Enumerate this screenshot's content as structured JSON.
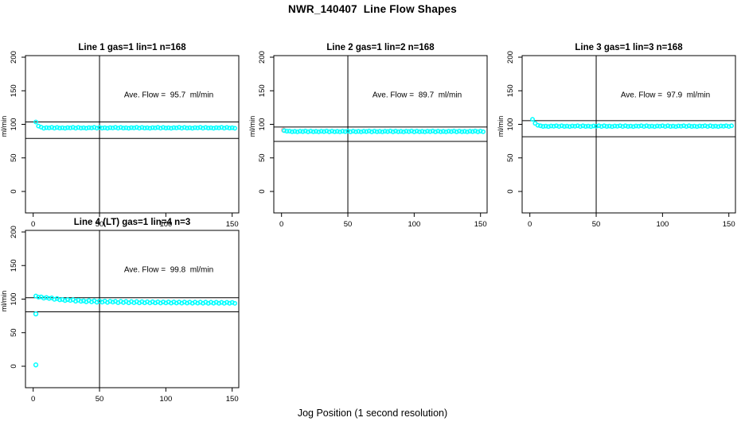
{
  "title": "NWR_140407  Line Flow Shapes",
  "xlabel": "Jog Position (1 second resolution)",
  "colors": {
    "background": "#ffffff",
    "axis": "#000000",
    "series": "#00ffff",
    "flagged": "#ffafaf"
  },
  "chart_data": [
    {
      "type": "scatter",
      "title": "Line 1 gas=1 lin=1 n=168",
      "annotation": "Ave. Flow =  95.7  ml/min",
      "ave_flow": 95.7,
      "ylabel": "ml/min",
      "x_ticks": [
        0,
        50,
        100,
        150
      ],
      "y_ticks": [
        0,
        50,
        100,
        150,
        200
      ],
      "xlim": [
        -6,
        155
      ],
      "ylim": [
        -32,
        202
      ],
      "grid": false,
      "vline_x": 50,
      "hlines": [
        103.5,
        79
      ],
      "x_start": 2,
      "x_step": 2,
      "y_values": [
        103.5,
        97.4,
        95.8,
        94.2,
        95.1,
        94.6,
        95.4,
        94.3,
        95.3,
        94.4,
        94.9,
        94.2,
        95.1,
        94.6,
        95.4,
        94.3,
        95.3,
        94.4,
        94.9,
        94.2,
        95.1,
        94.6,
        95.4,
        94.3,
        95.3,
        94.4,
        94.9,
        94.2,
        95.1,
        94.6,
        95.4,
        94.3,
        95.3,
        94.4,
        94.9,
        94.2,
        95.1,
        94.6,
        95.4,
        94.3,
        95.3,
        94.4,
        94.9,
        94.2,
        95.1,
        94.6,
        95.4,
        94.3,
        95.3,
        94.4,
        94.9,
        94.2,
        95.1,
        94.6,
        95.4,
        94.3,
        95.3,
        94.4,
        94.9,
        94.2,
        95.1,
        94.6,
        95.4,
        94.3,
        95.3,
        94.4,
        94.9,
        94.2,
        95.1,
        94.6,
        95.4,
        94.3,
        95.3,
        94.4,
        94.9,
        94.2
      ],
      "flagged_points": [],
      "extra_points": []
    },
    {
      "type": "scatter",
      "title": "Line 2 gas=1 lin=2 n=168",
      "annotation": "Ave. Flow =  89.7  ml/min",
      "ave_flow": 89.7,
      "ylabel": "ml/min",
      "x_ticks": [
        0,
        50,
        100,
        150
      ],
      "y_ticks": [
        0,
        50,
        100,
        150,
        200
      ],
      "xlim": [
        -6,
        155
      ],
      "ylim": [
        -32,
        202
      ],
      "grid": false,
      "vline_x": 50,
      "hlines": [
        96,
        74.5
      ],
      "x_start": 2,
      "x_step": 2,
      "y_values": [
        90.6,
        89.8,
        89.9,
        89.0,
        89.5,
        88.8,
        89.7,
        89.2,
        90.0,
        88.9,
        89.9,
        89.0,
        89.5,
        88.8,
        89.7,
        89.2,
        90.0,
        88.9,
        89.9,
        89.0,
        89.5,
        88.8,
        89.7,
        89.2,
        90.0,
        88.9,
        89.9,
        89.0,
        89.5,
        88.8,
        89.7,
        89.2,
        90.0,
        88.9,
        89.9,
        89.0,
        89.5,
        88.8,
        89.7,
        89.2,
        90.0,
        88.9,
        89.9,
        89.0,
        89.5,
        88.8,
        89.7,
        89.2,
        90.0,
        88.9,
        89.9,
        89.0,
        89.5,
        88.8,
        89.7,
        89.2,
        90.0,
        88.9,
        89.9,
        89.0,
        89.5,
        88.8,
        89.7,
        89.2,
        90.0,
        88.9,
        89.9,
        89.0,
        89.5,
        88.8,
        89.7,
        89.2,
        90.0,
        88.9,
        89.9,
        89.0
      ],
      "flagged_points": [
        [
          1.5,
          91.5
        ]
      ],
      "extra_points": []
    },
    {
      "type": "scatter",
      "title": "Line 3 gas=1 lin=3 n=168",
      "annotation": "Ave. Flow =  97.9  ml/min",
      "ave_flow": 97.9,
      "ylabel": "ml/min",
      "x_ticks": [
        0,
        50,
        100,
        150
      ],
      "y_ticks": [
        0,
        50,
        100,
        150,
        200
      ],
      "xlim": [
        -6,
        155
      ],
      "ylim": [
        -32,
        202
      ],
      "grid": false,
      "vline_x": 50,
      "hlines": [
        105.5,
        81.5
      ],
      "x_start": 2,
      "x_step": 2,
      "y_values": [
        107.5,
        101.5,
        98.6,
        97.8,
        96.9,
        97.4,
        96.7,
        97.6,
        97.1,
        97.9,
        96.8,
        97.8,
        96.9,
        97.4,
        96.7,
        97.6,
        97.1,
        97.9,
        96.8,
        97.8,
        96.9,
        97.4,
        96.7,
        97.6,
        97.1,
        97.9,
        96.8,
        97.8,
        96.9,
        97.4,
        96.7,
        97.6,
        97.1,
        97.9,
        96.8,
        97.8,
        96.9,
        97.4,
        96.7,
        97.6,
        97.1,
        97.9,
        96.8,
        97.8,
        96.9,
        97.4,
        96.7,
        97.6,
        97.1,
        97.9,
        96.8,
        97.8,
        96.9,
        97.4,
        96.7,
        97.6,
        97.1,
        97.9,
        96.8,
        97.8,
        96.9,
        97.4,
        96.7,
        97.6,
        97.1,
        97.9,
        96.8,
        97.8,
        96.9,
        97.4,
        96.7,
        97.6,
        97.1,
        97.9,
        96.8,
        97.8
      ],
      "flagged_points": [],
      "extra_points": []
    },
    {
      "type": "scatter",
      "title": "Line 4 (LT) gas=1 lin=4 n=3",
      "annotation": "Ave. Flow =  99.8  ml/min",
      "ave_flow": 99.8,
      "ylabel": "ml/min",
      "x_ticks": [
        0,
        50,
        100,
        150
      ],
      "y_ticks": [
        0,
        50,
        100,
        150,
        200
      ],
      "xlim": [
        -6,
        155
      ],
      "ylim": [
        -32,
        202
      ],
      "grid": false,
      "vline_x": 50,
      "hlines": [
        102,
        81
      ],
      "x_start": 2,
      "x_step": 2,
      "y_values": [
        104.6,
        102.9,
        103.3,
        101.4,
        102.4,
        101.0,
        101.8,
        99.6,
        100.9,
        98.9,
        99.5,
        97.9,
        99.2,
        98.0,
        99.1,
        96.9,
        98.5,
        96.7,
        97.5,
        96.0,
        97.8,
        96.0,
        97.6,
        95.4,
        97.2,
        95.5,
        97.1,
        95.0,
        96.8,
        95.5,
        96.7,
        94.7,
        96.6,
        94.9,
        96.5,
        94.5,
        96.4,
        94.6,
        96.3,
        94.4,
        96.2,
        94.5,
        96.1,
        94.3,
        96.0,
        94.4,
        95.9,
        94.2,
        95.8,
        94.3,
        95.7,
        94.1,
        95.7,
        94.2,
        95.6,
        94.0,
        95.6,
        94.1,
        95.5,
        93.9,
        95.5,
        94.0,
        95.4,
        93.9,
        95.4,
        93.8,
        95.3,
        93.9,
        95.3,
        93.8,
        95.2,
        93.7,
        95.2,
        93.8,
        95.1,
        93.7
      ],
      "flagged_points": [],
      "extra_points": [
        [
          2,
          78
        ],
        [
          2,
          2
        ]
      ]
    }
  ]
}
